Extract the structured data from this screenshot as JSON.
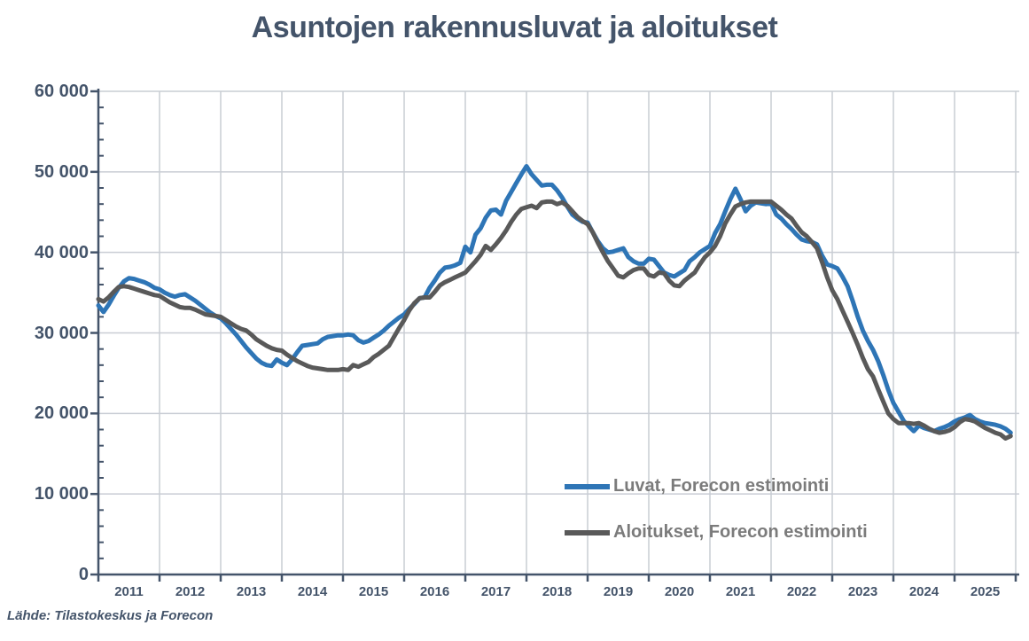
{
  "title": "Asuntojen rakennusluvat ja aloitukset",
  "source_note": "Lähde: Tilastokeskus ja Forecon",
  "colors": {
    "title_text": "#44546A",
    "axis": "#44546A",
    "gridline": "#C9CDD4",
    "legend_text": "#7B7B7B",
    "series_luvat": "#2E75B6",
    "series_aloitukset": "#595959",
    "background": "#FFFFFF"
  },
  "chart_data": {
    "type": "line",
    "title": "Asuntojen rakennusluvat ja aloitukset",
    "xlabel": "",
    "ylabel": "",
    "x_unit": "month",
    "x_range": [
      "2011-01",
      "2025-12"
    ],
    "x_tick_labels": [
      "2011",
      "2012",
      "2013",
      "2014",
      "2015",
      "2016",
      "2017",
      "2018",
      "2019",
      "2020",
      "2021",
      "2022",
      "2023",
      "2024",
      "2025"
    ],
    "ylim": [
      0,
      60000
    ],
    "y_major_tick_interval": 10000,
    "y_minor_tick_interval": 2000,
    "y_tick_labels_top_down": [
      "60 000",
      "50 000",
      "40 000",
      "30 000",
      "20 000",
      "10 000",
      "0"
    ],
    "grid": true,
    "legend_position": "inside-lower-right",
    "source_note": "Lähde: Tilastokeskus ja Forecon",
    "series": [
      {
        "name": "Luvat, Forecon estimointi",
        "color": "#2E75B6",
        "values": [
          33400,
          32600,
          33500,
          34600,
          35600,
          36400,
          36800,
          36700,
          36500,
          36300,
          36000,
          35600,
          35400,
          35000,
          34700,
          34500,
          34700,
          34800,
          34400,
          34000,
          33500,
          33000,
          32500,
          32100,
          31800,
          31200,
          30500,
          29800,
          29000,
          28200,
          27500,
          26800,
          26300,
          26000,
          25900,
          26700,
          26300,
          26000,
          26700,
          27600,
          28400,
          28500,
          28600,
          28700,
          29200,
          29500,
          29600,
          29700,
          29700,
          29800,
          29700,
          29100,
          28800,
          29000,
          29400,
          29800,
          30300,
          30900,
          31400,
          31900,
          32300,
          33000,
          33600,
          34300,
          34400,
          35600,
          36500,
          37500,
          38100,
          38200,
          38400,
          38700,
          40700,
          40000,
          42200,
          43000,
          44300,
          45200,
          45300,
          44700,
          46400,
          47500,
          48600,
          49700,
          50700,
          49700,
          49000,
          48300,
          48400,
          48400,
          47700,
          46800,
          45700,
          44700,
          44200,
          43800,
          43700,
          42500,
          41400,
          40500,
          40000,
          40100,
          40300,
          40500,
          39400,
          38900,
          38600,
          38600,
          39200,
          39100,
          38300,
          37500,
          37200,
          37000,
          37400,
          37800,
          38900,
          39400,
          40000,
          40400,
          40800,
          42400,
          43500,
          45100,
          46600,
          47900,
          46600,
          45100,
          45800,
          46200,
          46100,
          46000,
          46100,
          44700,
          44200,
          43500,
          42900,
          42200,
          41600,
          41400,
          41300,
          41000,
          39600,
          38500,
          38300,
          38000,
          37000,
          35800,
          34000,
          32000,
          30300,
          29000,
          27900,
          26500,
          24800,
          22900,
          21300,
          20200,
          19100,
          18400,
          17800,
          18500,
          18200,
          18000,
          17800,
          18100,
          18300,
          18600,
          19000,
          19300,
          19500,
          19800,
          19300,
          19000,
          18800,
          18700,
          18600,
          18400,
          18100,
          17600
        ]
      },
      {
        "name": "Aloitukset, Forecon estimointi",
        "color": "#595959",
        "values": [
          34200,
          33900,
          34400,
          35100,
          35700,
          35800,
          35700,
          35500,
          35300,
          35100,
          34900,
          34700,
          34600,
          34200,
          33800,
          33500,
          33200,
          33100,
          33100,
          32900,
          32600,
          32300,
          32200,
          32100,
          32000,
          31600,
          31200,
          30800,
          30500,
          30300,
          29800,
          29200,
          28800,
          28400,
          28100,
          27900,
          27800,
          27300,
          26900,
          26500,
          26200,
          25900,
          25700,
          25600,
          25500,
          25400,
          25400,
          25400,
          25500,
          25400,
          26000,
          25800,
          26100,
          26400,
          27000,
          27400,
          27900,
          28400,
          29500,
          30600,
          31600,
          32800,
          33700,
          34300,
          34400,
          34400,
          35100,
          35900,
          36300,
          36600,
          36900,
          37200,
          37500,
          38200,
          38900,
          39700,
          40800,
          40300,
          41000,
          41800,
          42700,
          43800,
          44700,
          45400,
          45600,
          45800,
          45500,
          46200,
          46300,
          46300,
          46000,
          46200,
          45800,
          45100,
          44400,
          43900,
          43500,
          42500,
          41200,
          40000,
          38900,
          38000,
          37100,
          36900,
          37400,
          37800,
          38000,
          38000,
          37200,
          37000,
          37500,
          37400,
          36500,
          35900,
          35800,
          36500,
          37000,
          37500,
          38500,
          39400,
          40000,
          40800,
          42000,
          43600,
          44700,
          45700,
          46000,
          46200,
          46300,
          46300,
          46300,
          46300,
          46300,
          45800,
          45300,
          44700,
          44200,
          43300,
          42500,
          42000,
          41300,
          40500,
          38800,
          36900,
          35300,
          34200,
          32800,
          31400,
          30000,
          28500,
          26900,
          25500,
          24600,
          23000,
          21500,
          20000,
          19300,
          18800,
          18800,
          18800,
          18700,
          18800,
          18500,
          18100,
          17800,
          17600,
          17700,
          17900,
          18300,
          18900,
          19300,
          19200,
          19000,
          18600,
          18200,
          17900,
          17600,
          17400,
          16900,
          17200
        ]
      }
    ]
  },
  "legend": {
    "items": [
      {
        "label": "Luvat, Forecon estimointi"
      },
      {
        "label": "Aloitukset, Forecon estimointi"
      }
    ]
  }
}
